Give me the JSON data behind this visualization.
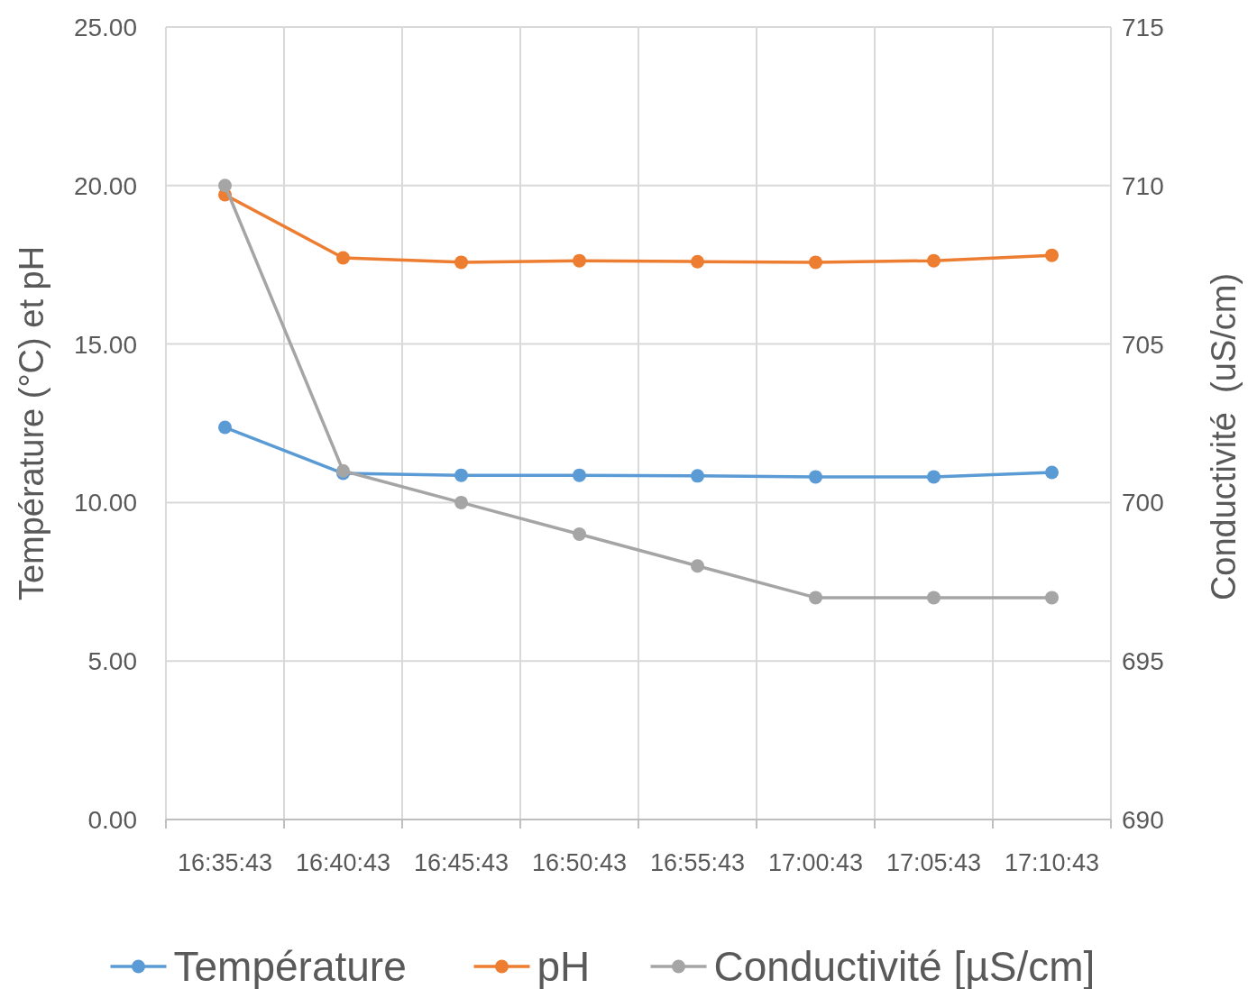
{
  "chart_data": {
    "type": "line",
    "ylabel": "Température (°C) et pH",
    "y2label": "Conductivité  (uS/cm)",
    "categories": [
      "16:35:43",
      "16:40:43",
      "16:45:43",
      "16:50:43",
      "16:55:43",
      "17:00:43",
      "17:05:43",
      "17:10:43"
    ],
    "series": [
      {
        "name": "Température",
        "color": "#5b9bd5",
        "values": [
          12.37,
          10.92,
          10.86,
          10.86,
          10.84,
          10.81,
          10.81,
          10.95
        ]
      },
      {
        "name": "pH",
        "color": "#ed7d31",
        "values": [
          19.71,
          17.72,
          17.58,
          17.63,
          17.6,
          17.58,
          17.63,
          17.8
        ]
      },
      {
        "name": "Conductivité [µS/cm]",
        "color": "#a5a5a5",
        "axis": "y2",
        "values": [
          710,
          701,
          700,
          699,
          698,
          697,
          697,
          697
        ]
      }
    ],
    "ylim": [
      0,
      25
    ],
    "yticks": [
      {
        "value": 0,
        "label": "0.00"
      },
      {
        "value": 5,
        "label": "5.00"
      },
      {
        "value": 10,
        "label": "10.00"
      },
      {
        "value": 15,
        "label": "15.00"
      },
      {
        "value": 20,
        "label": "20.00"
      },
      {
        "value": 25,
        "label": "25.00"
      }
    ],
    "y2lim": [
      690,
      715
    ],
    "y2ticks": [
      690,
      695,
      700,
      705,
      710,
      715
    ],
    "grid": true,
    "legend": "bottom",
    "marker": "circle",
    "line_style": "solid"
  }
}
